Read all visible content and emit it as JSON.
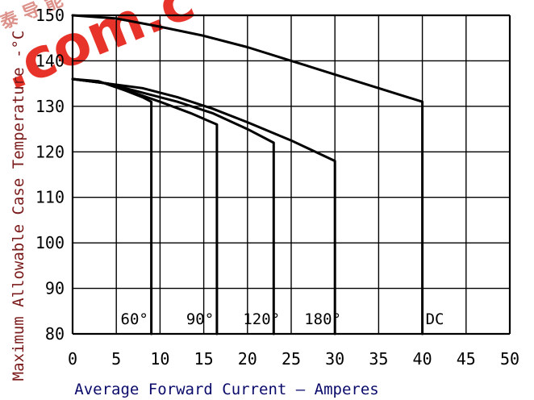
{
  "chart_data": {
    "type": "line",
    "xlabel": "Average Forward Current — Amperes",
    "ylabel": "Maximum Allowable Case Temperature -°C",
    "x_ticks": [
      "0",
      "5",
      "10",
      "15",
      "20",
      "25",
      "30",
      "35",
      "40",
      "45",
      "50"
    ],
    "y_ticks": [
      "80",
      "90",
      "100",
      "110",
      "120",
      "130",
      "140",
      "150"
    ],
    "xlim": [
      0,
      50
    ],
    "ylim": [
      80,
      150
    ],
    "grid": true,
    "series": [
      {
        "name": "60°",
        "points": [
          [
            0,
            136
          ],
          [
            3,
            135.5
          ],
          [
            6,
            133.5
          ],
          [
            8,
            132
          ],
          [
            9,
            131
          ],
          [
            9,
            80
          ]
        ]
      },
      {
        "name": "90°",
        "points": [
          [
            0,
            136
          ],
          [
            4,
            135
          ],
          [
            7,
            133
          ],
          [
            10,
            131
          ],
          [
            13.5,
            128.5
          ],
          [
            16.5,
            126
          ],
          [
            16.5,
            80
          ]
        ]
      },
      {
        "name": "120°",
        "points": [
          [
            0,
            136
          ],
          [
            4,
            135
          ],
          [
            8,
            133
          ],
          [
            12,
            131
          ],
          [
            16,
            128.5
          ],
          [
            20,
            125
          ],
          [
            23,
            122
          ],
          [
            23,
            80
          ]
        ]
      },
      {
        "name": "180°",
        "points": [
          [
            0,
            136
          ],
          [
            4,
            135
          ],
          [
            8,
            134
          ],
          [
            12,
            132
          ],
          [
            16,
            129.5
          ],
          [
            20,
            126.5
          ],
          [
            25,
            122.5
          ],
          [
            30,
            118
          ],
          [
            30,
            80
          ]
        ]
      },
      {
        "name": "DC",
        "points": [
          [
            0,
            150
          ],
          [
            5,
            149.3
          ],
          [
            10,
            147.5
          ],
          [
            15,
            145.5
          ],
          [
            20,
            143
          ],
          [
            25,
            140
          ],
          [
            30,
            137
          ],
          [
            35,
            134
          ],
          [
            40,
            131
          ],
          [
            40,
            80
          ]
        ]
      }
    ],
    "line_color": "#000000",
    "axis_text_color": "#000000",
    "ylabel_color": "#7a1a1a",
    "xlabel_color": "#0a0a6a"
  },
  "watermark": {
    "text": ".com.c",
    "cjk": "泰 导 能",
    "color": "#e8332a"
  }
}
